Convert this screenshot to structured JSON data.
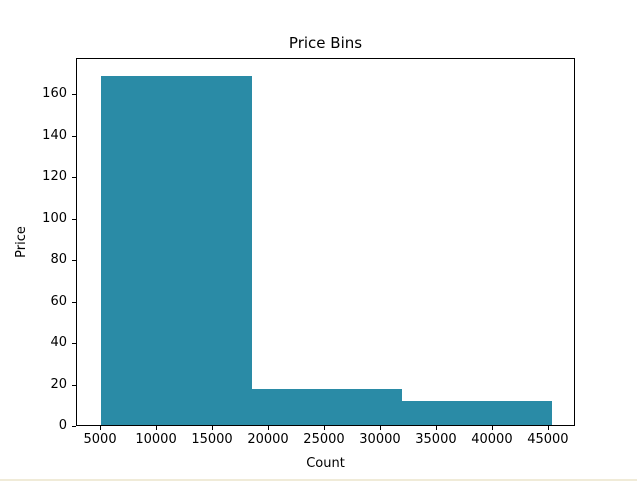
{
  "window": {
    "background": "#ffffff",
    "bottom_border_color": "#f0ebd8"
  },
  "chart_data": {
    "type": "bar",
    "subtype": "histogram",
    "title": "Price Bins",
    "xlabel": "Count",
    "ylabel": "Price",
    "bin_edges": [
      5118,
      18545.33,
      31972.67,
      45400
    ],
    "counts": [
      169,
      18,
      12
    ],
    "bar_color": "#2a8ba6",
    "xlim": [
      2850,
      47420
    ],
    "ylim": [
      0,
      177.45
    ],
    "x_ticks": [
      5000,
      10000,
      15000,
      20000,
      25000,
      30000,
      35000,
      40000,
      45000
    ],
    "y_ticks": [
      0,
      20,
      40,
      60,
      80,
      100,
      120,
      140,
      160
    ],
    "grid": false,
    "legend_position": "none",
    "text_color": "#000000",
    "spine_color": "#000000"
  }
}
